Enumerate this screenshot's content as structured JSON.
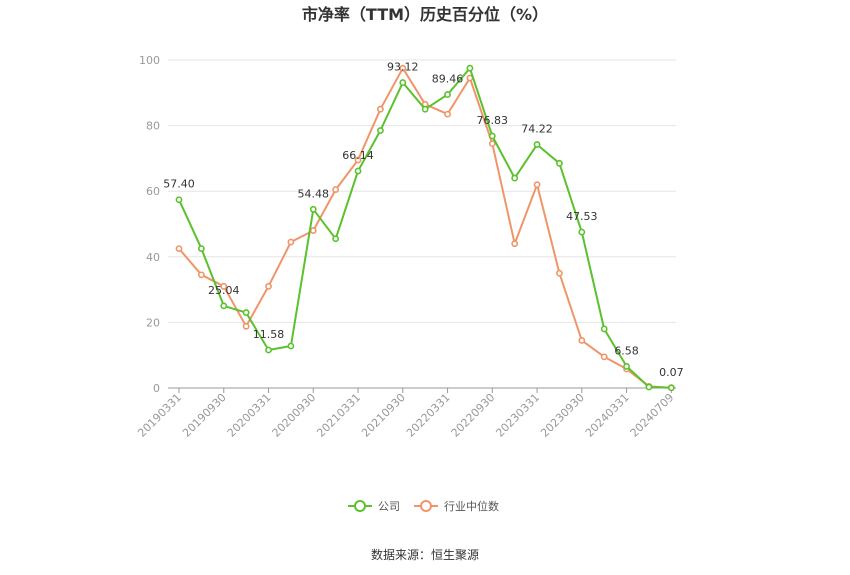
{
  "chart_data": {
    "type": "line",
    "title": "市净率（TTM）历史百分位（%）",
    "source": "数据来源：恒生聚源",
    "ylim": [
      0,
      100
    ],
    "yticks": [
      0,
      20,
      40,
      60,
      80,
      100
    ],
    "xtick_labels": [
      "20190331",
      "20190930",
      "20200331",
      "20200930",
      "20210331",
      "20210930",
      "20220331",
      "20220930",
      "20230331",
      "20230930",
      "20240331",
      "20240709"
    ],
    "grid": true,
    "legend_position": "bottom",
    "x": [
      "20190331",
      "20190630",
      "20190930",
      "20191231",
      "20200331",
      "20200630",
      "20200930",
      "20201231",
      "20210331",
      "20210630",
      "20210930",
      "20211231",
      "20220331",
      "20220630",
      "20220930",
      "20221231",
      "20230331",
      "20230630",
      "20230930",
      "20231231",
      "20240331",
      "20240630",
      "20240709"
    ],
    "series": [
      {
        "name": "公司",
        "color": "#5bc12d",
        "values": [
          57.4,
          42.5,
          25.04,
          23.0,
          11.58,
          12.8,
          54.48,
          45.5,
          66.14,
          78.5,
          93.12,
          85.0,
          89.46,
          97.5,
          76.83,
          64.0,
          74.22,
          68.5,
          47.53,
          18.0,
          6.58,
          0.3,
          0.07
        ]
      },
      {
        "name": "行业中位数",
        "color": "#f0956a",
        "values": [
          42.5,
          34.5,
          31.0,
          18.8,
          31.0,
          44.5,
          48.0,
          60.5,
          69.5,
          85.0,
          97.5,
          86.5,
          83.5,
          94.5,
          74.5,
          44.0,
          62.0,
          35.0,
          14.5,
          9.5,
          5.8,
          0.5,
          0.1
        ]
      }
    ],
    "data_labels": [
      {
        "series": 0,
        "index": 0,
        "text": "57.40"
      },
      {
        "series": 0,
        "index": 2,
        "text": "25.04"
      },
      {
        "series": 0,
        "index": 4,
        "text": "11.58"
      },
      {
        "series": 0,
        "index": 6,
        "text": "54.48"
      },
      {
        "series": 0,
        "index": 8,
        "text": "66.14"
      },
      {
        "series": 0,
        "index": 10,
        "text": "93.12"
      },
      {
        "series": 0,
        "index": 12,
        "text": "89.46"
      },
      {
        "series": 0,
        "index": 14,
        "text": "76.83"
      },
      {
        "series": 0,
        "index": 16,
        "text": "74.22"
      },
      {
        "series": 0,
        "index": 18,
        "text": "47.53"
      },
      {
        "series": 0,
        "index": 20,
        "text": "6.58"
      },
      {
        "series": 0,
        "index": 22,
        "text": "0.07"
      }
    ]
  }
}
